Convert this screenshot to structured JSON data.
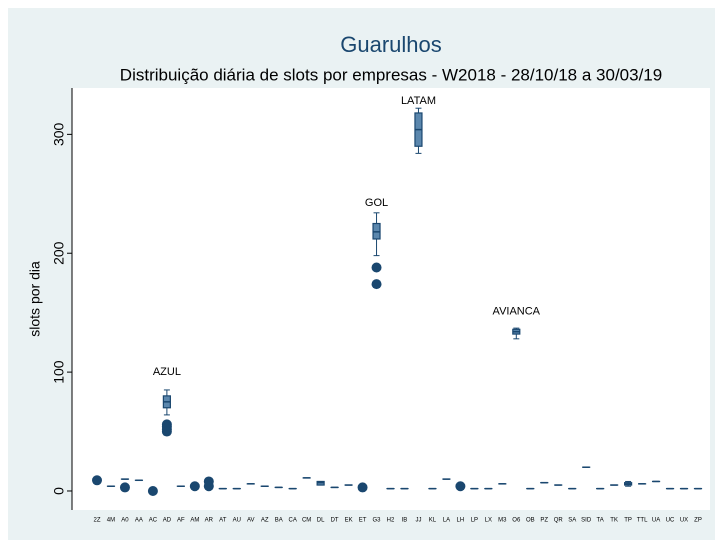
{
  "chart_data": {
    "type": "box",
    "title": "Guarulhos",
    "subtitle": "Distribuição diária de slots por empresas - W2018 - 28/10/18 a 30/03/19",
    "ylabel": "slots por dia",
    "ylim": [
      -16,
      339
    ],
    "yticks": [
      0,
      100,
      200,
      300
    ],
    "color": "#5b87ad",
    "edge_color": "#1a476f",
    "categories": [
      "2Z",
      "4M",
      "A0",
      "AA",
      "AC",
      "AD",
      "AF",
      "AM",
      "AR",
      "AT",
      "AU",
      "AV",
      "AZ",
      "BA",
      "CA",
      "CM",
      "DL",
      "DT",
      "EK",
      "ET",
      "G3",
      "H2",
      "IB",
      "JJ",
      "KL",
      "LA",
      "LH",
      "LP",
      "LX",
      "M3",
      "O6",
      "OB",
      "PZ",
      "QR",
      "SA",
      "SID",
      "TA",
      "TK",
      "TP",
      "TTL",
      "UA",
      "UC",
      "UX",
      "ZP"
    ],
    "boxes": [
      {
        "min": 9,
        "q1": 9,
        "median": 9,
        "q3": 9,
        "max": 9,
        "outliers": [
          9
        ]
      },
      {
        "min": 4,
        "q1": 4,
        "median": 4,
        "q3": 4,
        "max": 4,
        "outliers": []
      },
      {
        "min": 10,
        "q1": 10,
        "median": 10,
        "q3": 10,
        "max": 10,
        "outliers": [
          3
        ]
      },
      {
        "min": 9,
        "q1": 9,
        "median": 9,
        "q3": 9,
        "max": 9,
        "outliers": []
      },
      {
        "min": 1,
        "q1": 1,
        "median": 1,
        "q3": 1,
        "max": 1,
        "outliers": [
          0
        ]
      },
      {
        "min": 64,
        "q1": 70,
        "median": 75,
        "q3": 80,
        "max": 85,
        "outliers": [
          56,
          54,
          52,
          50
        ]
      },
      {
        "min": 4,
        "q1": 4,
        "median": 4,
        "q3": 4,
        "max": 4,
        "outliers": []
      },
      {
        "min": 3,
        "q1": 3,
        "median": 3,
        "q3": 3,
        "max": 3,
        "outliers": [
          4
        ]
      },
      {
        "min": 6,
        "q1": 6,
        "median": 6,
        "q3": 6,
        "max": 6,
        "outliers": [
          8,
          4
        ]
      },
      {
        "min": 2,
        "q1": 2,
        "median": 2,
        "q3": 2,
        "max": 2,
        "outliers": []
      },
      {
        "min": 2,
        "q1": 2,
        "median": 2,
        "q3": 2,
        "max": 2,
        "outliers": []
      },
      {
        "min": 6,
        "q1": 6,
        "median": 6,
        "q3": 6,
        "max": 6,
        "outliers": []
      },
      {
        "min": 4,
        "q1": 4,
        "median": 4,
        "q3": 4,
        "max": 4,
        "outliers": []
      },
      {
        "min": 3,
        "q1": 3,
        "median": 3,
        "q3": 3,
        "max": 3,
        "outliers": []
      },
      {
        "min": 2,
        "q1": 2,
        "median": 2,
        "q3": 2,
        "max": 2,
        "outliers": []
      },
      {
        "min": 11,
        "q1": 11,
        "median": 11,
        "q3": 11,
        "max": 11,
        "outliers": []
      },
      {
        "min": 5,
        "q1": 5,
        "median": 7,
        "q3": 8,
        "max": 8,
        "outliers": []
      },
      {
        "min": 3,
        "q1": 3,
        "median": 3,
        "q3": 3,
        "max": 3,
        "outliers": []
      },
      {
        "min": 5,
        "q1": 5,
        "median": 5,
        "q3": 5,
        "max": 5,
        "outliers": []
      },
      {
        "min": 3,
        "q1": 3,
        "median": 3,
        "q3": 3,
        "max": 3,
        "outliers": [
          3
        ]
      },
      {
        "min": 198,
        "q1": 212,
        "median": 218,
        "q3": 225,
        "max": 234,
        "outliers": [
          188,
          174
        ]
      },
      {
        "min": 2,
        "q1": 2,
        "median": 2,
        "q3": 2,
        "max": 2,
        "outliers": []
      },
      {
        "min": 2,
        "q1": 2,
        "median": 2,
        "q3": 2,
        "max": 2,
        "outliers": []
      },
      {
        "min": 284,
        "q1": 290,
        "median": 304,
        "q3": 318,
        "max": 322,
        "outliers": []
      },
      {
        "min": 2,
        "q1": 2,
        "median": 2,
        "q3": 2,
        "max": 2,
        "outliers": []
      },
      {
        "min": 10,
        "q1": 10,
        "median": 10,
        "q3": 10,
        "max": 10,
        "outliers": []
      },
      {
        "min": 3,
        "q1": 3,
        "median": 3,
        "q3": 3,
        "max": 3,
        "outliers": [
          4
        ]
      },
      {
        "min": 2,
        "q1": 2,
        "median": 2,
        "q3": 2,
        "max": 2,
        "outliers": []
      },
      {
        "min": 2,
        "q1": 2,
        "median": 2,
        "q3": 2,
        "max": 2,
        "outliers": []
      },
      {
        "min": 6,
        "q1": 6,
        "median": 6,
        "q3": 6,
        "max": 6,
        "outliers": []
      },
      {
        "min": 128,
        "q1": 132,
        "median": 134,
        "q3": 136,
        "max": 137,
        "outliers": []
      },
      {
        "min": 2,
        "q1": 2,
        "median": 2,
        "q3": 2,
        "max": 2,
        "outliers": []
      },
      {
        "min": 7,
        "q1": 7,
        "median": 7,
        "q3": 7,
        "max": 7,
        "outliers": []
      },
      {
        "min": 5,
        "q1": 5,
        "median": 5,
        "q3": 5,
        "max": 5,
        "outliers": []
      },
      {
        "min": 2,
        "q1": 2,
        "median": 2,
        "q3": 2,
        "max": 2,
        "outliers": []
      },
      {
        "min": 20,
        "q1": 20,
        "median": 20,
        "q3": 20,
        "max": 20,
        "outliers": []
      },
      {
        "min": 2,
        "q1": 2,
        "median": 2,
        "q3": 2,
        "max": 2,
        "outliers": []
      },
      {
        "min": 5,
        "q1": 5,
        "median": 5,
        "q3": 5,
        "max": 5,
        "outliers": []
      },
      {
        "min": 4,
        "q1": 5,
        "median": 6,
        "q3": 7,
        "max": 8,
        "outliers": []
      },
      {
        "min": 6,
        "q1": 6,
        "median": 6,
        "q3": 6,
        "max": 6,
        "outliers": []
      },
      {
        "min": 8,
        "q1": 8,
        "median": 8,
        "q3": 8,
        "max": 8,
        "outliers": []
      },
      {
        "min": 2,
        "q1": 2,
        "median": 2,
        "q3": 2,
        "max": 2,
        "outliers": []
      },
      {
        "min": 2,
        "q1": 2,
        "median": 2,
        "q3": 2,
        "max": 2,
        "outliers": []
      },
      {
        "min": 2,
        "q1": 2,
        "median": 2,
        "q3": 2,
        "max": 2,
        "outliers": []
      }
    ],
    "annotations": [
      {
        "text": "AZUL",
        "category": "AD",
        "y": 100
      },
      {
        "text": "GOL",
        "category": "G3",
        "y": 242
      },
      {
        "text": "LATAM",
        "category": "JJ",
        "y": 328
      },
      {
        "text": "AVIANCA",
        "category": "O6",
        "y": 151
      }
    ]
  }
}
